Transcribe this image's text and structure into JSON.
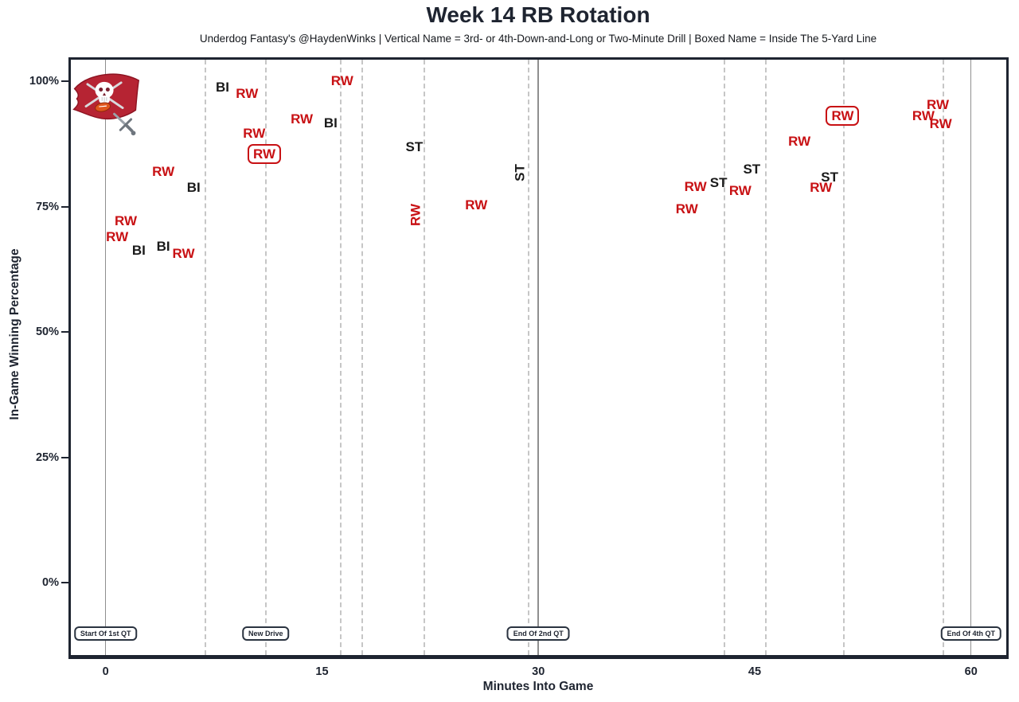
{
  "colors": {
    "red": "#c81114",
    "black": "#1a1a1a",
    "axis": "#1e2430",
    "grid_solid": "#8f8f8f",
    "grid_dashed": "#c6c6c6",
    "flag_red": "#b62433",
    "football_orange": "#e0561c"
  },
  "chart_data": {
    "type": "scatter",
    "title": "Week 14 RB Rotation",
    "subtitle": "Underdog Fantasy's @HaydenWinks | Vertical Name = 3rd- or 4th-Down-and-Long or Two-Minute Drill | Boxed Name = Inside The 5-Yard Line",
    "xlabel": "Minutes Into Game",
    "ylabel": "In-Game Winning Percentage",
    "xlim": [
      -2.5,
      62.5
    ],
    "ylim": [
      -16,
      105
    ],
    "grid": "vertical-only",
    "legend_position": "none",
    "team_logo": "tampa-bay-buccaneers-flag",
    "players": [
      {
        "abbr": "RW",
        "color_key": "red"
      },
      {
        "abbr": "BI",
        "color_key": "black"
      },
      {
        "abbr": "ST",
        "color_key": "black"
      }
    ],
    "x_ticks": [
      {
        "value": 0,
        "label": "0"
      },
      {
        "value": 15,
        "label": "15"
      },
      {
        "value": 30,
        "label": "30"
      },
      {
        "value": 45,
        "label": "45"
      },
      {
        "value": 60,
        "label": "60"
      }
    ],
    "y_ticks": [
      {
        "value": 100,
        "label": "100%"
      },
      {
        "value": 75,
        "label": "75%"
      },
      {
        "value": 50,
        "label": "50%"
      },
      {
        "value": 25,
        "label": "25%"
      },
      {
        "value": 0,
        "label": "0%"
      }
    ],
    "quarter_lines": [
      {
        "minute": 0,
        "label": "Start Of 1st QT"
      },
      {
        "minute": 30,
        "label": "End Of 2nd QT"
      },
      {
        "minute": 60,
        "label": "End Of 4th QT"
      }
    ],
    "drive_lines_minutes": [
      6.9,
      11.1,
      16.3,
      17.8,
      22.1,
      29.3,
      42.9,
      45.8,
      51.2,
      58.1
    ],
    "annotations": [
      {
        "minute": 0,
        "label": "Start Of 1st QT"
      },
      {
        "minute": 11.1,
        "label": "New Drive"
      },
      {
        "minute": 30,
        "label": "End Of 2nd QT"
      },
      {
        "minute": 60,
        "label": "End Of 4th QT"
      }
    ],
    "points": [
      {
        "label": "RW",
        "minute": 0.8,
        "win_pct": 68.9,
        "color": "red",
        "vertical": false,
        "boxed": false
      },
      {
        "label": "RW",
        "minute": 1.4,
        "win_pct": 72.1,
        "color": "red",
        "vertical": false,
        "boxed": false
      },
      {
        "label": "BI",
        "minute": 2.3,
        "win_pct": 66.2,
        "color": "black",
        "vertical": false,
        "boxed": false
      },
      {
        "label": "BI",
        "minute": 4.0,
        "win_pct": 67.0,
        "color": "black",
        "vertical": false,
        "boxed": false
      },
      {
        "label": "RW",
        "minute": 4.0,
        "win_pct": 81.9,
        "color": "red",
        "vertical": false,
        "boxed": false
      },
      {
        "label": "RW",
        "minute": 5.4,
        "win_pct": 65.6,
        "color": "red",
        "vertical": false,
        "boxed": false
      },
      {
        "label": "BI",
        "minute": 6.1,
        "win_pct": 78.7,
        "color": "black",
        "vertical": false,
        "boxed": false
      },
      {
        "label": "BI",
        "minute": 8.1,
        "win_pct": 98.7,
        "color": "black",
        "vertical": false,
        "boxed": false
      },
      {
        "label": "RW",
        "minute": 9.8,
        "win_pct": 97.5,
        "color": "red",
        "vertical": false,
        "boxed": false
      },
      {
        "label": "RW",
        "minute": 10.3,
        "win_pct": 89.5,
        "color": "red",
        "vertical": false,
        "boxed": false
      },
      {
        "label": "RW",
        "minute": 11.0,
        "win_pct": 85.4,
        "color": "red",
        "vertical": false,
        "boxed": true
      },
      {
        "label": "RW",
        "minute": 13.6,
        "win_pct": 92.4,
        "color": "red",
        "vertical": false,
        "boxed": false
      },
      {
        "label": "BI",
        "minute": 15.6,
        "win_pct": 91.6,
        "color": "black",
        "vertical": false,
        "boxed": false
      },
      {
        "label": "RW",
        "minute": 16.4,
        "win_pct": 100.0,
        "color": "red",
        "vertical": false,
        "boxed": false
      },
      {
        "label": "ST",
        "minute": 21.4,
        "win_pct": 86.8,
        "color": "black",
        "vertical": false,
        "boxed": false
      },
      {
        "label": "RW",
        "minute": 21.5,
        "win_pct": 73.3,
        "color": "red",
        "vertical": true,
        "boxed": false
      },
      {
        "label": "RW",
        "minute": 25.7,
        "win_pct": 75.2,
        "color": "red",
        "vertical": false,
        "boxed": false
      },
      {
        "label": "ST",
        "minute": 28.7,
        "win_pct": 81.7,
        "color": "black",
        "vertical": true,
        "boxed": false
      },
      {
        "label": "RW",
        "minute": 40.3,
        "win_pct": 74.4,
        "color": "red",
        "vertical": false,
        "boxed": false
      },
      {
        "label": "RW",
        "minute": 40.9,
        "win_pct": 78.9,
        "color": "red",
        "vertical": false,
        "boxed": false
      },
      {
        "label": "ST",
        "minute": 42.5,
        "win_pct": 79.7,
        "color": "black",
        "vertical": false,
        "boxed": false
      },
      {
        "label": "RW",
        "minute": 44.0,
        "win_pct": 78.1,
        "color": "red",
        "vertical": false,
        "boxed": false
      },
      {
        "label": "ST",
        "minute": 44.8,
        "win_pct": 82.4,
        "color": "black",
        "vertical": false,
        "boxed": false
      },
      {
        "label": "RW",
        "minute": 48.1,
        "win_pct": 87.9,
        "color": "red",
        "vertical": false,
        "boxed": false
      },
      {
        "label": "RW",
        "minute": 49.6,
        "win_pct": 78.7,
        "color": "red",
        "vertical": false,
        "boxed": false
      },
      {
        "label": "ST",
        "minute": 50.2,
        "win_pct": 80.8,
        "color": "black",
        "vertical": false,
        "boxed": false
      },
      {
        "label": "RW",
        "minute": 51.1,
        "win_pct": 93.0,
        "color": "red",
        "vertical": false,
        "boxed": true
      },
      {
        "label": "RW",
        "minute": 56.7,
        "win_pct": 93.0,
        "color": "red",
        "vertical": false,
        "boxed": false
      },
      {
        "label": "RW",
        "minute": 57.7,
        "win_pct": 95.2,
        "color": "red",
        "vertical": false,
        "boxed": false
      },
      {
        "label": "RW",
        "minute": 57.9,
        "win_pct": 91.4,
        "color": "red",
        "vertical": false,
        "boxed": false
      }
    ]
  }
}
